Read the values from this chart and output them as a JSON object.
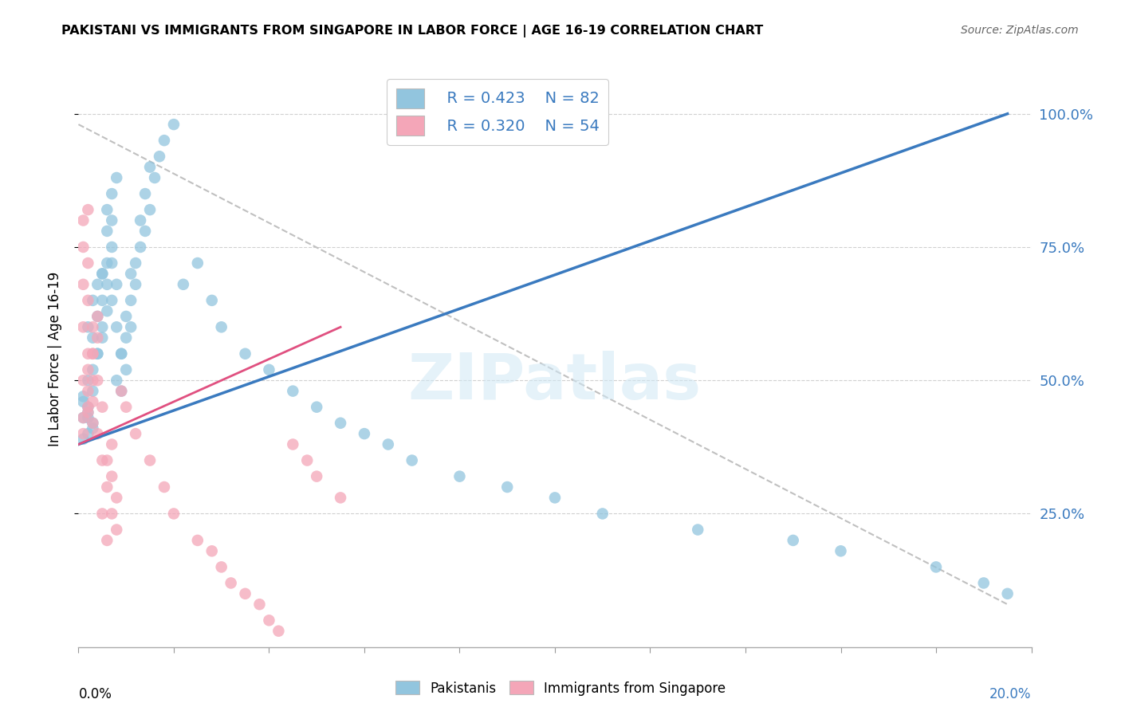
{
  "title": "PAKISTANI VS IMMIGRANTS FROM SINGAPORE IN LABOR FORCE | AGE 16-19 CORRELATION CHART",
  "source": "Source: ZipAtlas.com",
  "ylabel": "In Labor Force | Age 16-19",
  "legend_blue_r": "R = 0.423",
  "legend_blue_n": "N = 82",
  "legend_pink_r": "R = 0.320",
  "legend_pink_n": "N = 54",
  "watermark": "ZIPatlas",
  "blue_color": "#92c5de",
  "pink_color": "#f4a6b8",
  "blue_line_color": "#3a7abf",
  "pink_line_color": "#e05080",
  "blue_scatter_x": [
    0.001,
    0.002,
    0.001,
    0.003,
    0.002,
    0.001,
    0.002,
    0.003,
    0.002,
    0.001,
    0.003,
    0.002,
    0.003,
    0.004,
    0.003,
    0.002,
    0.004,
    0.003,
    0.004,
    0.005,
    0.004,
    0.005,
    0.005,
    0.006,
    0.005,
    0.006,
    0.005,
    0.006,
    0.007,
    0.006,
    0.007,
    0.006,
    0.007,
    0.008,
    0.007,
    0.008,
    0.007,
    0.008,
    0.009,
    0.008,
    0.009,
    0.01,
    0.009,
    0.01,
    0.011,
    0.01,
    0.011,
    0.012,
    0.011,
    0.012,
    0.013,
    0.014,
    0.013,
    0.015,
    0.014,
    0.016,
    0.015,
    0.017,
    0.018,
    0.02,
    0.025,
    0.022,
    0.028,
    0.03,
    0.035,
    0.04,
    0.045,
    0.05,
    0.055,
    0.06,
    0.065,
    0.07,
    0.08,
    0.09,
    0.1,
    0.11,
    0.13,
    0.15,
    0.16,
    0.18,
    0.19,
    0.195
  ],
  "blue_scatter_y": [
    0.43,
    0.45,
    0.47,
    0.42,
    0.44,
    0.46,
    0.43,
    0.41,
    0.4,
    0.39,
    0.48,
    0.5,
    0.52,
    0.55,
    0.58,
    0.6,
    0.62,
    0.65,
    0.68,
    0.7,
    0.55,
    0.58,
    0.6,
    0.63,
    0.65,
    0.68,
    0.7,
    0.72,
    0.75,
    0.78,
    0.8,
    0.82,
    0.85,
    0.88,
    0.72,
    0.68,
    0.65,
    0.6,
    0.55,
    0.5,
    0.48,
    0.52,
    0.55,
    0.58,
    0.6,
    0.62,
    0.65,
    0.68,
    0.7,
    0.72,
    0.75,
    0.78,
    0.8,
    0.82,
    0.85,
    0.88,
    0.9,
    0.92,
    0.95,
    0.98,
    0.72,
    0.68,
    0.65,
    0.6,
    0.55,
    0.52,
    0.48,
    0.45,
    0.42,
    0.4,
    0.38,
    0.35,
    0.32,
    0.3,
    0.28,
    0.25,
    0.22,
    0.2,
    0.18,
    0.15,
    0.12,
    0.1
  ],
  "pink_scatter_x": [
    0.001,
    0.001,
    0.002,
    0.001,
    0.002,
    0.001,
    0.002,
    0.001,
    0.002,
    0.001,
    0.002,
    0.001,
    0.003,
    0.002,
    0.003,
    0.002,
    0.003,
    0.002,
    0.003,
    0.004,
    0.003,
    0.004,
    0.003,
    0.004,
    0.005,
    0.004,
    0.005,
    0.006,
    0.005,
    0.006,
    0.007,
    0.006,
    0.007,
    0.008,
    0.007,
    0.008,
    0.009,
    0.01,
    0.012,
    0.015,
    0.018,
    0.02,
    0.025,
    0.028,
    0.03,
    0.032,
    0.035,
    0.038,
    0.04,
    0.042,
    0.045,
    0.048,
    0.05,
    0.055
  ],
  "pink_scatter_y": [
    0.43,
    0.8,
    0.82,
    0.75,
    0.72,
    0.68,
    0.65,
    0.6,
    0.55,
    0.5,
    0.45,
    0.4,
    0.42,
    0.44,
    0.46,
    0.48,
    0.5,
    0.52,
    0.55,
    0.58,
    0.6,
    0.62,
    0.55,
    0.5,
    0.45,
    0.4,
    0.35,
    0.3,
    0.25,
    0.2,
    0.38,
    0.35,
    0.32,
    0.28,
    0.25,
    0.22,
    0.48,
    0.45,
    0.4,
    0.35,
    0.3,
    0.25,
    0.2,
    0.18,
    0.15,
    0.12,
    0.1,
    0.08,
    0.05,
    0.03,
    0.38,
    0.35,
    0.32,
    0.28
  ],
  "blue_line_x": [
    0.0,
    0.195
  ],
  "blue_line_y": [
    0.38,
    1.0
  ],
  "pink_line_x": [
    0.0,
    0.055
  ],
  "pink_line_y": [
    0.38,
    0.6
  ],
  "diag_line_x": [
    0.0,
    0.195
  ],
  "diag_line_y": [
    0.98,
    0.08
  ],
  "xmin": 0.0,
  "xmax": 0.2,
  "ymin": 0.0,
  "ymax": 1.08
}
